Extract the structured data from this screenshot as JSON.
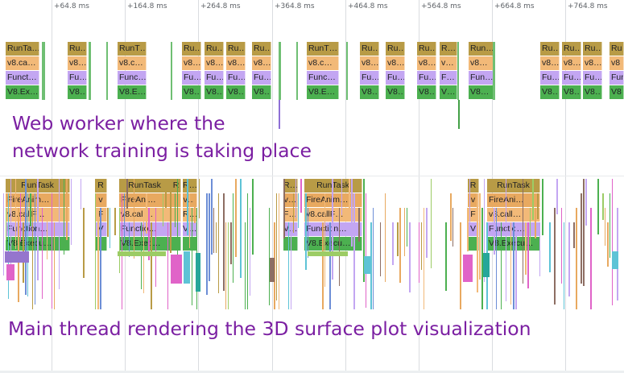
{
  "timeline": {
    "ticks": [
      "+64.8 ms",
      "+164.8 ms",
      "+264.8 ms",
      "+364.8 ms",
      "+464.8 ms",
      "+564.8 ms",
      "+664.8 ms",
      "+764.8 ms"
    ]
  },
  "worker_thread": {
    "annotation_line1": "Web worker where the",
    "annotation_line2": "network training is taking place",
    "task_labels": [
      "RunTa…",
      "Ru…",
      "RunT…",
      "Ru…",
      "Ru…",
      "Ru…",
      "Ru…",
      "RunT…",
      "Ru…",
      "Ru…",
      "Ru…",
      "R…",
      "Run…",
      "Ru…",
      "Ru…",
      "Ru…",
      "Ru"
    ],
    "call_labels": [
      "v8.ca…",
      "v8…",
      "v8.c…",
      "v8…",
      "v8…",
      "v8…",
      "v8…",
      "v8.c…",
      "v8…",
      "v8…",
      "v8…",
      "v…",
      "v8…",
      "v8…",
      "v8…",
      "v8…",
      "v8"
    ],
    "function_labels": [
      "Funct…",
      "Fu…",
      "Func…",
      "Fu…",
      "Fu…",
      "Fu…",
      "Fu…",
      "Func…",
      "Fu…",
      "Fu…",
      "Fu…",
      "F…",
      "Fun…",
      "Fu…",
      "Fu…",
      "Fu…",
      "Fun"
    ],
    "execute_labels": [
      "V8.Ex…",
      "V8…",
      "V8.E…",
      "V8…",
      "V8…",
      "V8…",
      "V8…",
      "V8.E…",
      "V8…",
      "V8…",
      "V8…",
      "V…",
      "V8…",
      "V8…",
      "V8…",
      "V8…",
      "V8"
    ]
  },
  "main_thread": {
    "annotation": "Main thread rendering the 3D surface plot visualization",
    "runtask_label": "RunTask",
    "anim_label_1": "FireAnim…",
    "anim_label_2": "FireAni…",
    "anim_label_3": "FireAnim…",
    "anim_label_4": "FireAni…",
    "call_label_1": "v8.callF…",
    "call_label_2": "v8.call…",
    "call_label_3": "v8.callF…",
    "call_label_4": "v8.call…",
    "func_label_1": "Function…",
    "func_label_2": "Functio…",
    "func_label_3": "Function…",
    "func_label_4": "Functio…",
    "exec_label_1": "V8.Execu…",
    "exec_label_2": "V8.Exec…",
    "exec_label_3": "V8.Execu…",
    "exec_label_4": "V8.Execu…",
    "r_label": "R",
    "r_dots": "R…",
    "v_label": "v",
    "v_dots": "v…",
    "f_label": "F",
    "f_dots": "F…",
    "cap_v_label": "V",
    "cap_v_dots": "V…"
  },
  "colors": {
    "runtask": "#b89b46",
    "anim": "#e8a960",
    "call": "#f2b978",
    "function": "#c3a6f2",
    "execute": "#4cb050",
    "annotation": "#7b1fa2"
  }
}
